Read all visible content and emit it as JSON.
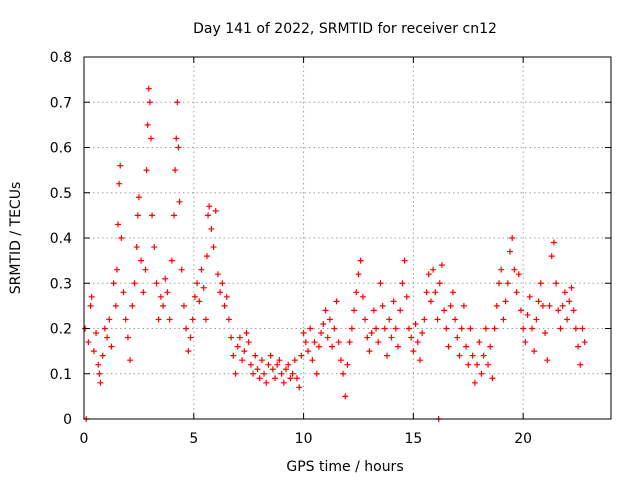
{
  "chart_data": {
    "type": "scatter",
    "title": "Day 141 of 2022, SRMTID for receiver cn12",
    "xlabel": "GPS time / hours",
    "ylabel": "SRMTID / TECUs",
    "xlim": [
      0,
      24
    ],
    "ylim": [
      0,
      0.8
    ],
    "x_ticks": [
      0,
      5,
      10,
      15,
      20
    ],
    "y_ticks": [
      0,
      0.1,
      0.2,
      0.3,
      0.4,
      0.5,
      0.6,
      0.7,
      0.8
    ],
    "x_tick_labels": [
      "0",
      "5",
      "10",
      "15",
      "20"
    ],
    "y_tick_labels": [
      "0",
      "0.1",
      "0.2",
      "0.3",
      "0.4",
      "0.5",
      "0.6",
      "0.7",
      "0.8"
    ],
    "grid": true,
    "marker": "+",
    "color": "#ff0000",
    "series": [
      {
        "name": "SRMTID",
        "points": [
          [
            0.05,
            0.2
          ],
          [
            0.1,
            0.0
          ],
          [
            0.2,
            0.17
          ],
          [
            0.3,
            0.25
          ],
          [
            0.35,
            0.27
          ],
          [
            0.45,
            0.15
          ],
          [
            0.55,
            0.19
          ],
          [
            0.65,
            0.12
          ],
          [
            0.7,
            0.1
          ],
          [
            0.75,
            0.08
          ],
          [
            0.85,
            0.14
          ],
          [
            0.95,
            0.2
          ],
          [
            1.05,
            0.18
          ],
          [
            1.15,
            0.22
          ],
          [
            1.25,
            0.16
          ],
          [
            1.35,
            0.3
          ],
          [
            1.45,
            0.25
          ],
          [
            1.5,
            0.33
          ],
          [
            1.55,
            0.43
          ],
          [
            1.6,
            0.52
          ],
          [
            1.65,
            0.56
          ],
          [
            1.7,
            0.4
          ],
          [
            1.8,
            0.28
          ],
          [
            1.9,
            0.22
          ],
          [
            2.0,
            0.18
          ],
          [
            2.1,
            0.13
          ],
          [
            2.2,
            0.25
          ],
          [
            2.3,
            0.3
          ],
          [
            2.4,
            0.38
          ],
          [
            2.45,
            0.45
          ],
          [
            2.5,
            0.49
          ],
          [
            2.6,
            0.35
          ],
          [
            2.7,
            0.28
          ],
          [
            2.8,
            0.33
          ],
          [
            2.85,
            0.55
          ],
          [
            2.9,
            0.65
          ],
          [
            2.95,
            0.73
          ],
          [
            3.0,
            0.7
          ],
          [
            3.05,
            0.62
          ],
          [
            3.1,
            0.45
          ],
          [
            3.2,
            0.38
          ],
          [
            3.3,
            0.3
          ],
          [
            3.4,
            0.22
          ],
          [
            3.5,
            0.27
          ],
          [
            3.6,
            0.25
          ],
          [
            3.7,
            0.31
          ],
          [
            3.8,
            0.28
          ],
          [
            3.9,
            0.22
          ],
          [
            4.0,
            0.35
          ],
          [
            4.1,
            0.45
          ],
          [
            4.15,
            0.55
          ],
          [
            4.2,
            0.62
          ],
          [
            4.25,
            0.7
          ],
          [
            4.3,
            0.6
          ],
          [
            4.35,
            0.48
          ],
          [
            4.45,
            0.33
          ],
          [
            4.55,
            0.25
          ],
          [
            4.65,
            0.2
          ],
          [
            4.75,
            0.15
          ],
          [
            4.85,
            0.18
          ],
          [
            4.95,
            0.22
          ],
          [
            5.05,
            0.27
          ],
          [
            5.15,
            0.3
          ],
          [
            5.25,
            0.26
          ],
          [
            5.35,
            0.33
          ],
          [
            5.45,
            0.29
          ],
          [
            5.55,
            0.22
          ],
          [
            5.6,
            0.36
          ],
          [
            5.65,
            0.45
          ],
          [
            5.7,
            0.47
          ],
          [
            5.8,
            0.42
          ],
          [
            5.9,
            0.38
          ],
          [
            6.0,
            0.46
          ],
          [
            6.1,
            0.32
          ],
          [
            6.2,
            0.28
          ],
          [
            6.3,
            0.3
          ],
          [
            6.4,
            0.25
          ],
          [
            6.5,
            0.27
          ],
          [
            6.6,
            0.22
          ],
          [
            6.7,
            0.18
          ],
          [
            6.8,
            0.14
          ],
          [
            6.9,
            0.1
          ],
          [
            7.0,
            0.16
          ],
          [
            7.1,
            0.18
          ],
          [
            7.2,
            0.13
          ],
          [
            7.3,
            0.15
          ],
          [
            7.4,
            0.19
          ],
          [
            7.5,
            0.17
          ],
          [
            7.6,
            0.12
          ],
          [
            7.7,
            0.1
          ],
          [
            7.8,
            0.14
          ],
          [
            7.9,
            0.11
          ],
          [
            8.0,
            0.09
          ],
          [
            8.1,
            0.13
          ],
          [
            8.2,
            0.1
          ],
          [
            8.3,
            0.08
          ],
          [
            8.4,
            0.12
          ],
          [
            8.5,
            0.14
          ],
          [
            8.6,
            0.11
          ],
          [
            8.7,
            0.09
          ],
          [
            8.8,
            0.12
          ],
          [
            8.9,
            0.13
          ],
          [
            9.0,
            0.1
          ],
          [
            9.1,
            0.08
          ],
          [
            9.2,
            0.11
          ],
          [
            9.3,
            0.12
          ],
          [
            9.4,
            0.09
          ],
          [
            9.5,
            0.1
          ],
          [
            9.6,
            0.13
          ],
          [
            9.7,
            0.09
          ],
          [
            9.8,
            0.07
          ],
          [
            9.9,
            0.14
          ],
          [
            10.0,
            0.19
          ],
          [
            10.1,
            0.17
          ],
          [
            10.2,
            0.15
          ],
          [
            10.3,
            0.2
          ],
          [
            10.4,
            0.13
          ],
          [
            10.5,
            0.17
          ],
          [
            10.6,
            0.1
          ],
          [
            10.7,
            0.16
          ],
          [
            10.8,
            0.19
          ],
          [
            10.9,
            0.21
          ],
          [
            11.0,
            0.24
          ],
          [
            11.1,
            0.18
          ],
          [
            11.2,
            0.22
          ],
          [
            11.3,
            0.16
          ],
          [
            11.4,
            0.2
          ],
          [
            11.5,
            0.26
          ],
          [
            11.6,
            0.17
          ],
          [
            11.7,
            0.13
          ],
          [
            11.8,
            0.1
          ],
          [
            11.9,
            0.05
          ],
          [
            12.0,
            0.12
          ],
          [
            12.1,
            0.17
          ],
          [
            12.2,
            0.2
          ],
          [
            12.3,
            0.24
          ],
          [
            12.4,
            0.28
          ],
          [
            12.5,
            0.32
          ],
          [
            12.6,
            0.35
          ],
          [
            12.7,
            0.27
          ],
          [
            12.8,
            0.22
          ],
          [
            12.9,
            0.18
          ],
          [
            13.0,
            0.15
          ],
          [
            13.1,
            0.19
          ],
          [
            13.2,
            0.24
          ],
          [
            13.3,
            0.2
          ],
          [
            13.4,
            0.17
          ],
          [
            13.5,
            0.3
          ],
          [
            13.6,
            0.25
          ],
          [
            13.7,
            0.2
          ],
          [
            13.8,
            0.14
          ],
          [
            13.9,
            0.22
          ],
          [
            14.0,
            0.18
          ],
          [
            14.1,
            0.26
          ],
          [
            14.2,
            0.2
          ],
          [
            14.3,
            0.16
          ],
          [
            14.4,
            0.24
          ],
          [
            14.5,
            0.3
          ],
          [
            14.6,
            0.35
          ],
          [
            14.7,
            0.27
          ],
          [
            14.8,
            0.2
          ],
          [
            14.9,
            0.18
          ],
          [
            15.0,
            0.15
          ],
          [
            15.1,
            0.21
          ],
          [
            15.2,
            0.17
          ],
          [
            15.3,
            0.13
          ],
          [
            15.4,
            0.19
          ],
          [
            15.5,
            0.22
          ],
          [
            15.6,
            0.28
          ],
          [
            15.7,
            0.32
          ],
          [
            15.8,
            0.26
          ],
          [
            15.9,
            0.33
          ],
          [
            16.0,
            0.28
          ],
          [
            16.1,
            0.22
          ],
          [
            16.15,
            0.0
          ],
          [
            16.2,
            0.3
          ],
          [
            16.3,
            0.34
          ],
          [
            16.4,
            0.24
          ],
          [
            16.5,
            0.2
          ],
          [
            16.6,
            0.16
          ],
          [
            16.7,
            0.25
          ],
          [
            16.8,
            0.28
          ],
          [
            16.9,
            0.22
          ],
          [
            17.0,
            0.18
          ],
          [
            17.1,
            0.14
          ],
          [
            17.2,
            0.2
          ],
          [
            17.3,
            0.25
          ],
          [
            17.4,
            0.16
          ],
          [
            17.5,
            0.12
          ],
          [
            17.6,
            0.2
          ],
          [
            17.7,
            0.14
          ],
          [
            17.8,
            0.08
          ],
          [
            17.9,
            0.12
          ],
          [
            18.0,
            0.17
          ],
          [
            18.1,
            0.1
          ],
          [
            18.2,
            0.14
          ],
          [
            18.3,
            0.2
          ],
          [
            18.4,
            0.12
          ],
          [
            18.5,
            0.16
          ],
          [
            18.6,
            0.09
          ],
          [
            18.7,
            0.2
          ],
          [
            18.8,
            0.25
          ],
          [
            18.9,
            0.3
          ],
          [
            19.0,
            0.33
          ],
          [
            19.1,
            0.22
          ],
          [
            19.2,
            0.26
          ],
          [
            19.3,
            0.3
          ],
          [
            19.4,
            0.37
          ],
          [
            19.5,
            0.4
          ],
          [
            19.6,
            0.33
          ],
          [
            19.7,
            0.28
          ],
          [
            19.8,
            0.32
          ],
          [
            19.9,
            0.24
          ],
          [
            20.0,
            0.2
          ],
          [
            20.1,
            0.17
          ],
          [
            20.2,
            0.23
          ],
          [
            20.3,
            0.27
          ],
          [
            20.4,
            0.2
          ],
          [
            20.5,
            0.15
          ],
          [
            20.6,
            0.22
          ],
          [
            20.7,
            0.26
          ],
          [
            20.8,
            0.3
          ],
          [
            20.9,
            0.25
          ],
          [
            21.0,
            0.19
          ],
          [
            21.1,
            0.13
          ],
          [
            21.2,
            0.25
          ],
          [
            21.3,
            0.36
          ],
          [
            21.4,
            0.39
          ],
          [
            21.5,
            0.3
          ],
          [
            21.6,
            0.24
          ],
          [
            21.7,
            0.2
          ],
          [
            21.8,
            0.25
          ],
          [
            21.9,
            0.28
          ],
          [
            22.0,
            0.22
          ],
          [
            22.1,
            0.26
          ],
          [
            22.2,
            0.29
          ],
          [
            22.3,
            0.24
          ],
          [
            22.4,
            0.2
          ],
          [
            22.5,
            0.16
          ],
          [
            22.6,
            0.12
          ],
          [
            22.7,
            0.2
          ],
          [
            22.8,
            0.17
          ]
        ]
      }
    ]
  }
}
